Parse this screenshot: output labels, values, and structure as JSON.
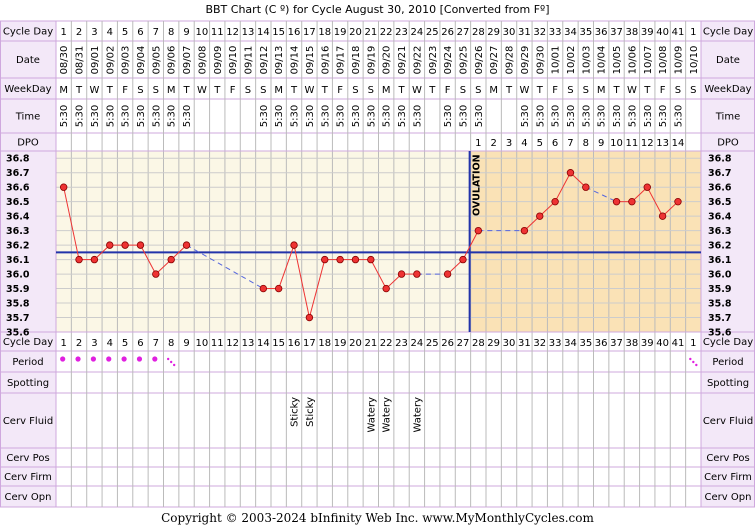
{
  "title": "BBT Chart (C º) for Cycle August 30, 2010  [Converted from Fº]",
  "footer": "Copyright © 2003-2024 bInfinity Web Inc.     www.MyMonthlyCycles.com",
  "colors": {
    "background": "#ffffff",
    "border": "#cfa8de",
    "label_bg": "#f3e8f8",
    "pre_ovulation_bg": "#fbf7e6",
    "post_ovulation_bg": "#fae2b6",
    "temp_line": "#ee3333",
    "point_fill": "#ee3333",
    "missing_line": "#5566dd",
    "coverline": "#2233aa",
    "ovulation_line": "#2233aa",
    "period_dot": "#e020e0"
  },
  "row_labels": {
    "cycle_day": "Cycle Day",
    "date": "Date",
    "weekday": "WeekDay",
    "time": "Time",
    "dpo": "DPO",
    "period": "Period",
    "spotting": "Spotting",
    "cerv_fluid": "Cerv Fluid",
    "cerv_pos": "Cerv Pos",
    "cerv_firm": "Cerv Firm",
    "cerv_opn": "Cerv Opn"
  },
  "chart_data": {
    "type": "line",
    "title": "BBT Chart (C º) for Cycle August 30, 2010  [Converted from Fº]",
    "xlabel": "Cycle Day",
    "ylabel": "",
    "ylim": [
      35.6,
      36.8
    ],
    "y_ticks": [
      "36.8",
      "36.7",
      "36.6",
      "36.5",
      "36.4",
      "36.3",
      "36.2",
      "36.1",
      "36.0",
      "35.9",
      "35.8",
      "35.7",
      "35.6"
    ],
    "cycle_days": [
      "1",
      "2",
      "3",
      "4",
      "5",
      "6",
      "7",
      "8",
      "9",
      "10",
      "11",
      "12",
      "13",
      "14",
      "15",
      "16",
      "17",
      "18",
      "19",
      "20",
      "21",
      "22",
      "23",
      "24",
      "25",
      "26",
      "27",
      "28",
      "29",
      "30",
      "31",
      "32",
      "33",
      "34",
      "35",
      "36",
      "37",
      "38",
      "39",
      "40",
      "41",
      "1"
    ],
    "dates": [
      "08/30",
      "08/31",
      "09/01",
      "09/02",
      "09/03",
      "09/04",
      "09/05",
      "09/06",
      "09/07",
      "09/08",
      "09/09",
      "09/10",
      "09/11",
      "09/12",
      "09/13",
      "09/14",
      "09/15",
      "09/16",
      "09/17",
      "09/18",
      "09/19",
      "09/20",
      "09/21",
      "09/22",
      "09/23",
      "09/24",
      "09/25",
      "09/26",
      "09/27",
      "09/28",
      "09/29",
      "09/30",
      "10/01",
      "10/02",
      "10/03",
      "10/04",
      "10/05",
      "10/06",
      "10/07",
      "10/08",
      "10/09",
      "10/10"
    ],
    "weekdays": [
      "M",
      "T",
      "W",
      "T",
      "F",
      "S",
      "S",
      "M",
      "T",
      "W",
      "T",
      "F",
      "S",
      "S",
      "M",
      "T",
      "W",
      "T",
      "F",
      "S",
      "S",
      "M",
      "T",
      "W",
      "T",
      "F",
      "S",
      "S",
      "M",
      "T",
      "W",
      "T",
      "F",
      "S",
      "S",
      "M",
      "T",
      "W",
      "T",
      "F",
      "S",
      "S"
    ],
    "times": [
      "5:30",
      "5:30",
      "5:30",
      "5:30",
      "5:30",
      "5:30",
      "5:30",
      "5:30",
      "5:30",
      "",
      "",
      "",
      "",
      "5:30",
      "5:30",
      "5:30",
      "5:30",
      "5:30",
      "5:30",
      "5:30",
      "5:30",
      "5:30",
      "5:30",
      "5:30",
      "",
      "5:30",
      "5:30",
      "5:30",
      "",
      "",
      "5:30",
      "5:30",
      "5:30",
      "5:30",
      "5:30",
      "5:30",
      "5:30",
      "5:30",
      "5:30",
      "5:30",
      "5:30",
      ""
    ],
    "dpo": [
      "",
      "",
      "",
      "",
      "",
      "",
      "",
      "",
      "",
      "",
      "",
      "",
      "",
      "",
      "",
      "",
      "",
      "",
      "",
      "",
      "",
      "",
      "",
      "",
      "",
      "",
      "",
      "1",
      "2",
      "3",
      "4",
      "5",
      "6",
      "7",
      "8",
      "9",
      "10",
      "11",
      "12",
      "13",
      "14",
      ""
    ],
    "temperatures": [
      36.6,
      36.1,
      36.1,
      36.2,
      36.2,
      36.2,
      36.0,
      36.1,
      36.2,
      null,
      null,
      null,
      null,
      35.9,
      35.9,
      36.2,
      35.7,
      36.1,
      36.1,
      36.1,
      36.1,
      35.9,
      36.0,
      36.0,
      null,
      36.0,
      36.1,
      36.3,
      null,
      null,
      36.3,
      36.4,
      36.5,
      36.7,
      36.6,
      null,
      36.5,
      36.5,
      36.6,
      36.4,
      36.5,
      null
    ],
    "coverline": 36.15,
    "ovulation_day": 27,
    "ovulation_label": "OVULATION",
    "period": [
      "dot",
      "dot",
      "dot",
      "dot",
      "dot",
      "dot",
      "dot",
      "light",
      "",
      "",
      "",
      "",
      "",
      "",
      "",
      "",
      "",
      "",
      "",
      "",
      "",
      "",
      "",
      "",
      "",
      "",
      "",
      "",
      "",
      "",
      "",
      "",
      "",
      "",
      "",
      "",
      "",
      "",
      "",
      "",
      "",
      "light"
    ],
    "cervical_fluid": [
      "",
      "",
      "",
      "",
      "",
      "",
      "",
      "",
      "",
      "",
      "",
      "",
      "",
      "",
      "",
      "Sticky",
      "Sticky",
      "",
      "",
      "",
      "Watery",
      "Watery",
      "",
      "Watery",
      "",
      "",
      "",
      "",
      "",
      "",
      "",
      "",
      "",
      "",
      "",
      "",
      "",
      "",
      "",
      "",
      "",
      ""
    ],
    "grid": true
  }
}
